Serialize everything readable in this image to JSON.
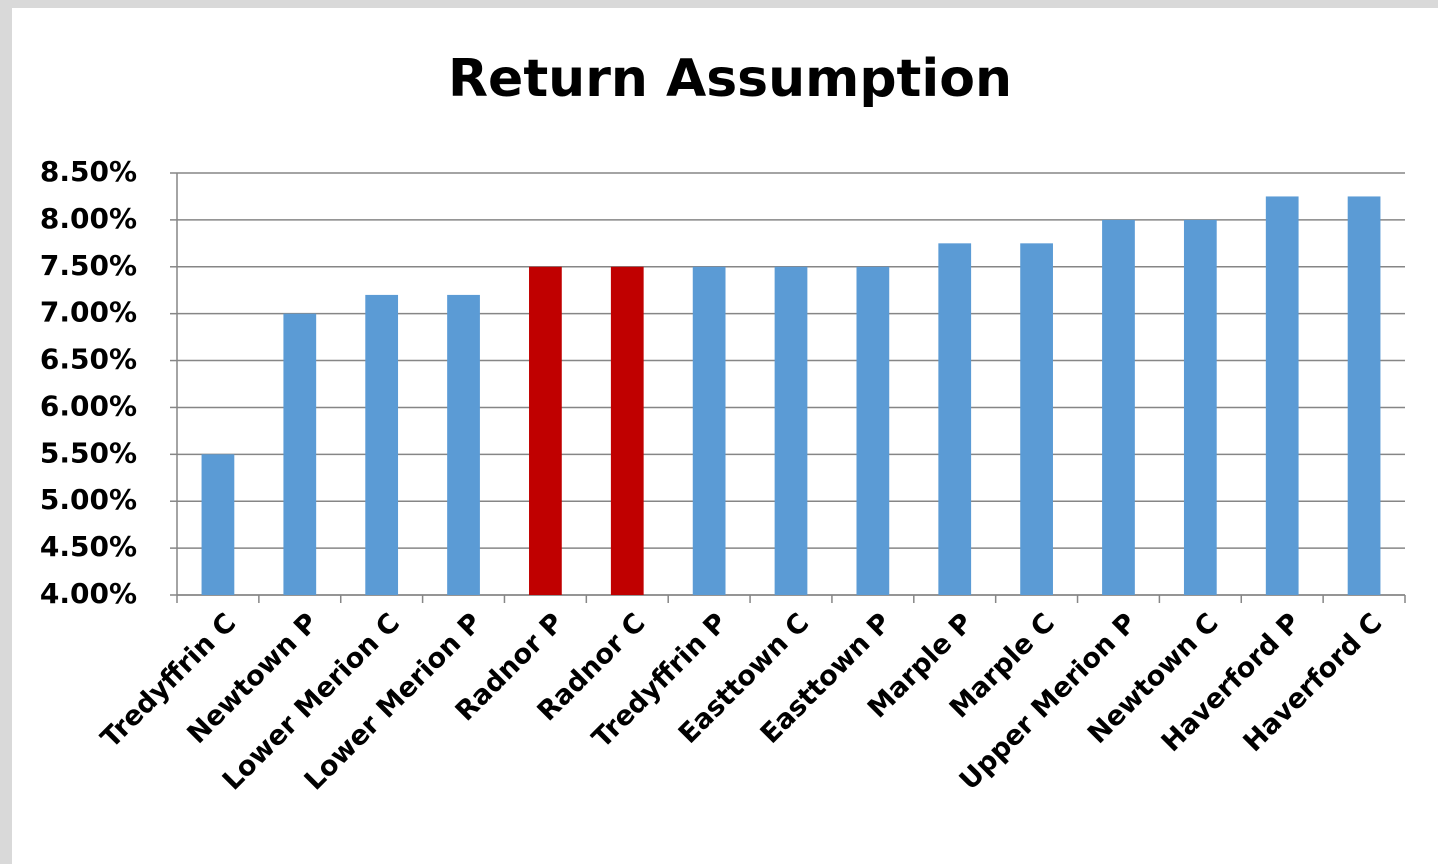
{
  "chart_data": {
    "type": "bar",
    "title": "Return Assumption",
    "categories": [
      "Tredyffrin C",
      "Newtown P",
      "Lower Merion C",
      "Lower Merion P",
      "Radnor P",
      "Radnor C",
      "Tredyffrin P",
      "Easttown C",
      "Easttown P",
      "Marple P",
      "Marple C",
      "Upper Merion P",
      "Newtown C",
      "Haverford P",
      "Haverford C"
    ],
    "values": [
      5.5,
      7.0,
      7.2,
      7.2,
      7.5,
      7.5,
      7.5,
      7.5,
      7.5,
      7.75,
      7.75,
      8.0,
      8.0,
      8.25,
      8.25
    ],
    "colors": [
      "#5b9bd5",
      "#5b9bd5",
      "#5b9bd5",
      "#5b9bd5",
      "#c00000",
      "#c00000",
      "#5b9bd5",
      "#5b9bd5",
      "#5b9bd5",
      "#5b9bd5",
      "#5b9bd5",
      "#5b9bd5",
      "#5b9bd5",
      "#5b9bd5",
      "#5b9bd5"
    ],
    "ylim": [
      4.0,
      8.5
    ],
    "yticks": [
      {
        "value": 4.0,
        "label": "4.00%"
      },
      {
        "value": 4.5,
        "label": "4.50%"
      },
      {
        "value": 5.0,
        "label": "5.00%"
      },
      {
        "value": 5.5,
        "label": "5.50%"
      },
      {
        "value": 6.0,
        "label": "6.00%"
      },
      {
        "value": 6.5,
        "label": "6.50%"
      },
      {
        "value": 7.0,
        "label": "7.00%"
      },
      {
        "value": 7.5,
        "label": "7.50%"
      },
      {
        "value": 8.0,
        "label": "8.00%"
      },
      {
        "value": 8.5,
        "label": "8.50%"
      }
    ],
    "grid": true
  }
}
